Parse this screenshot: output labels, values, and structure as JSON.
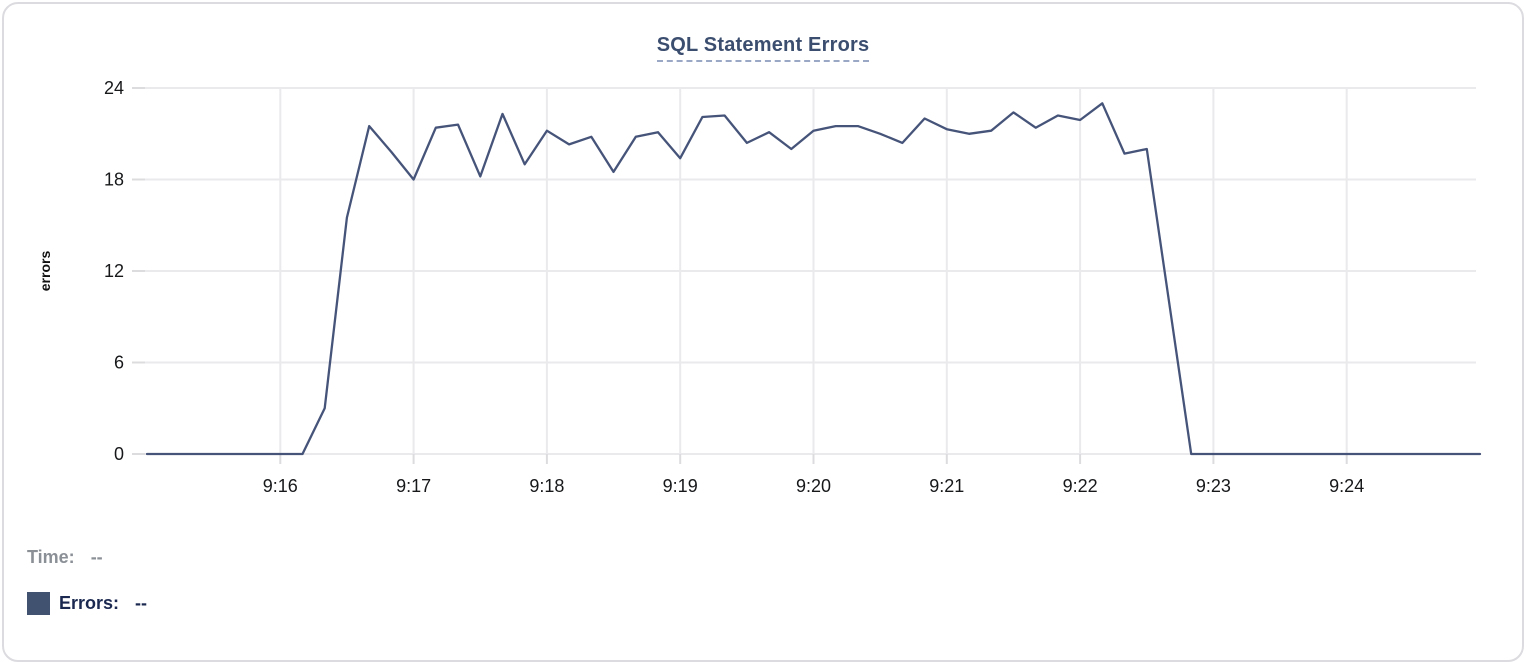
{
  "chart": {
    "title": "SQL Statement Errors"
  },
  "chart_data": {
    "type": "line",
    "title": "SQL Statement Errors",
    "xlabel": "",
    "ylabel": "errors",
    "ylim": [
      0,
      24
    ],
    "yticks": [
      0,
      6,
      12,
      18,
      24
    ],
    "xticks": [
      "9:16",
      "9:17",
      "9:18",
      "9:19",
      "9:20",
      "9:21",
      "9:22",
      "9:23",
      "9:24"
    ],
    "x_range": [
      "9:15:00",
      "9:25:00"
    ],
    "grid": true,
    "legend_position": "bottom-left",
    "line_color": "#46547a",
    "grid_color": "#eaeaec",
    "tick_color": "#dcdcdf",
    "axis_text_color": "#17181a",
    "series": [
      {
        "name": "Errors",
        "x": [
          "9:15:00",
          "9:15:10",
          "9:15:20",
          "9:15:30",
          "9:15:40",
          "9:15:50",
          "9:16:00",
          "9:16:10",
          "9:16:20",
          "9:16:30",
          "9:16:40",
          "9:16:50",
          "9:17:00",
          "9:17:10",
          "9:17:20",
          "9:17:30",
          "9:17:40",
          "9:17:50",
          "9:18:00",
          "9:18:10",
          "9:18:20",
          "9:18:30",
          "9:18:40",
          "9:18:50",
          "9:19:00",
          "9:19:10",
          "9:19:20",
          "9:19:30",
          "9:19:40",
          "9:19:50",
          "9:20:00",
          "9:20:10",
          "9:20:20",
          "9:20:30",
          "9:20:40",
          "9:20:50",
          "9:21:00",
          "9:21:10",
          "9:21:20",
          "9:21:30",
          "9:21:40",
          "9:21:50",
          "9:22:00",
          "9:22:10",
          "9:22:20",
          "9:22:30",
          "9:22:40",
          "9:22:50",
          "9:23:00",
          "9:23:10",
          "9:23:20",
          "9:23:30",
          "9:23:40",
          "9:23:50",
          "9:24:00",
          "9:24:10",
          "9:24:20",
          "9:24:30",
          "9:24:40",
          "9:24:50",
          "9:25:00"
        ],
        "values": [
          0,
          0,
          0,
          0,
          0,
          0,
          0,
          0,
          3,
          15.5,
          21.5,
          19.8,
          18,
          21.4,
          21.6,
          18.2,
          22.3,
          19,
          21.2,
          20.3,
          20.8,
          18.5,
          20.8,
          21.1,
          19.4,
          22.1,
          22.2,
          20.4,
          21.1,
          20,
          21.2,
          21.5,
          21.5,
          21,
          20.4,
          22,
          21.3,
          21,
          21.2,
          22.4,
          21.4,
          22.2,
          21.9,
          23,
          19.7,
          20,
          10,
          0,
          0,
          0,
          0,
          0,
          0,
          0,
          0,
          0,
          0,
          0,
          0,
          0,
          0
        ]
      }
    ]
  },
  "readout": {
    "time_label": "Time:",
    "time_value": "--",
    "errors_label": "Errors:",
    "errors_value": "--",
    "swatch_color": "#415270"
  }
}
